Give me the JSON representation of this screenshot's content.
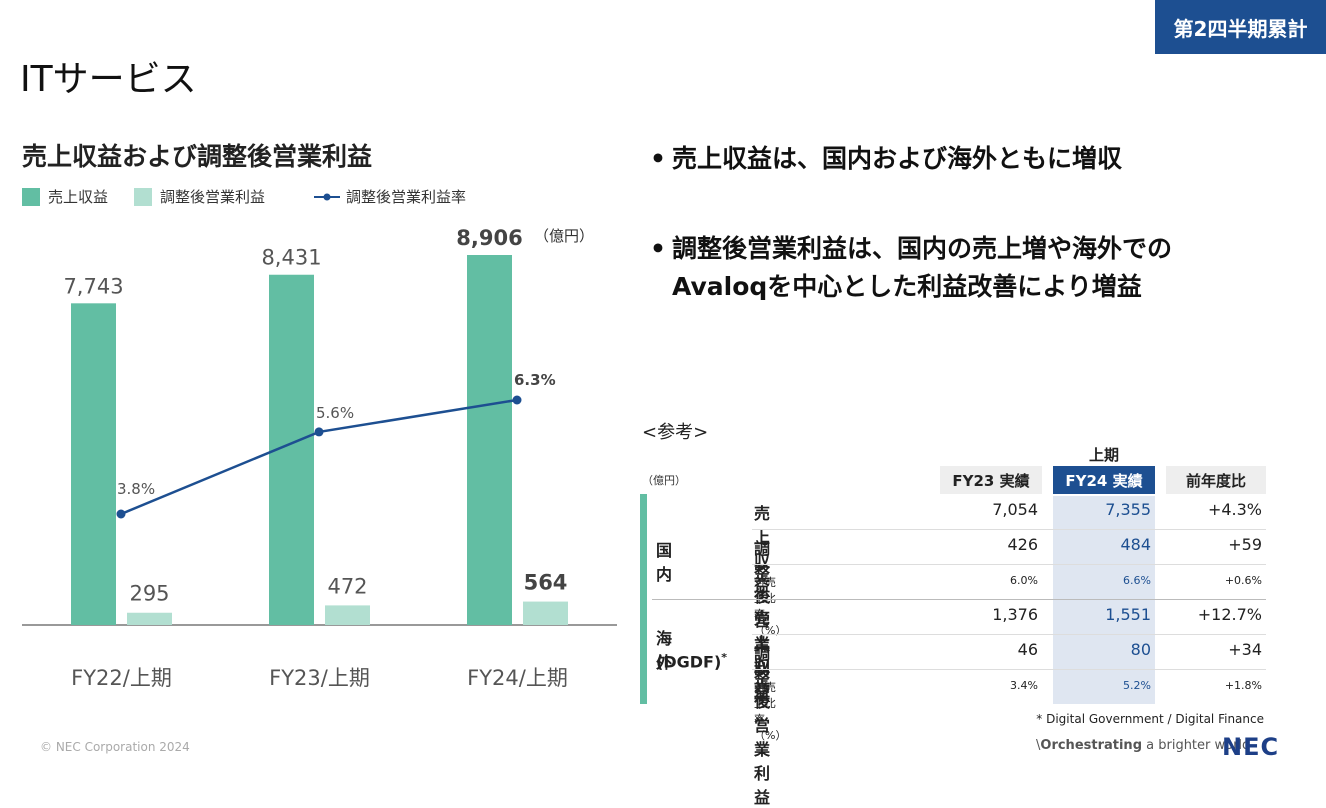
{
  "badge": "第2四半期累計",
  "page_title": "ITサービス",
  "chart_title": "売上収益および調整後営業利益",
  "legend": [
    {
      "label": "売上収益",
      "color": "#62bea3"
    },
    {
      "label": "調整後営業利益",
      "color": "#b2dfd1"
    },
    {
      "label": "調整後営業利益率",
      "color": "#1d4f91"
    }
  ],
  "colors": {
    "revenue": "#62bea3",
    "profit": "#b2dfd1",
    "margin": "#1d4f91",
    "accent": "#1d4f91",
    "highlight_bg": "#dfe6f1"
  },
  "chart_data": {
    "type": "bar",
    "unit": "（億円）",
    "categories": [
      "FY22/上期",
      "FY23/上期",
      "FY24/上期"
    ],
    "series": [
      {
        "name": "売上収益",
        "values": [
          7743,
          8431,
          8906
        ],
        "labels": [
          "7,743",
          "8,431",
          "8,906"
        ]
      },
      {
        "name": "調整後営業利益",
        "values": [
          295,
          472,
          564
        ],
        "labels": [
          "295",
          "472",
          "564"
        ]
      },
      {
        "name": "調整後営業利益率",
        "type": "line",
        "values": [
          3.8,
          5.6,
          6.3
        ],
        "labels": [
          "3.8%",
          "5.6%",
          "6.3%"
        ]
      }
    ],
    "ylim": [
      0,
      8906
    ],
    "margin_ylim": [
      0,
      6.3
    ],
    "grid": false,
    "legend_position": "top-left"
  },
  "bullets": [
    {
      "lines": [
        "売上収益は、国内および海外ともに増収"
      ]
    },
    {
      "lines": [
        "調整後営業利益は、国内の売上増や海外での",
        "Avaloqを中心とした利益改善により増益"
      ]
    }
  ],
  "reference": {
    "label": "<参考>",
    "unit": "（億円）",
    "period": "上期",
    "columns": [
      "FY23 実績",
      "FY24 実績",
      "前年度比"
    ],
    "groups": [
      {
        "name": "国内",
        "note": "",
        "rows": [
          {
            "label": "売上収益",
            "fy23": "7,054",
            "fy24": "7,355",
            "diff": "+4.3%",
            "small": false
          },
          {
            "label": "調整後営業利益",
            "fy23": "426",
            "fy24": "484",
            "diff": "+59",
            "small": false
          },
          {
            "label": "対売上比率（%）",
            "fy23": "6.0%",
            "fy24": "6.6%",
            "diff": "+0.6%",
            "small": true
          }
        ]
      },
      {
        "name": "海外",
        "note": "(DGDF)",
        "asterisk": "*",
        "rows": [
          {
            "label": "売上収益",
            "fy23": "1,376",
            "fy24": "1,551",
            "diff": "+12.7%",
            "small": false
          },
          {
            "label": "調整後営業利益",
            "fy23": "46",
            "fy24": "80",
            "diff": "+34",
            "small": false
          },
          {
            "label": "対売上比率（%）",
            "fy23": "3.4%",
            "fy24": "5.2%",
            "diff": "+1.8%",
            "small": true
          }
        ]
      }
    ],
    "footnote": "* Digital Government / Digital Finance"
  },
  "footer": {
    "copyright": "© NEC Corporation 2024",
    "tagline_bold": "Orchestrating",
    "tagline_rest": " a brighter world",
    "logo": "NEC"
  }
}
